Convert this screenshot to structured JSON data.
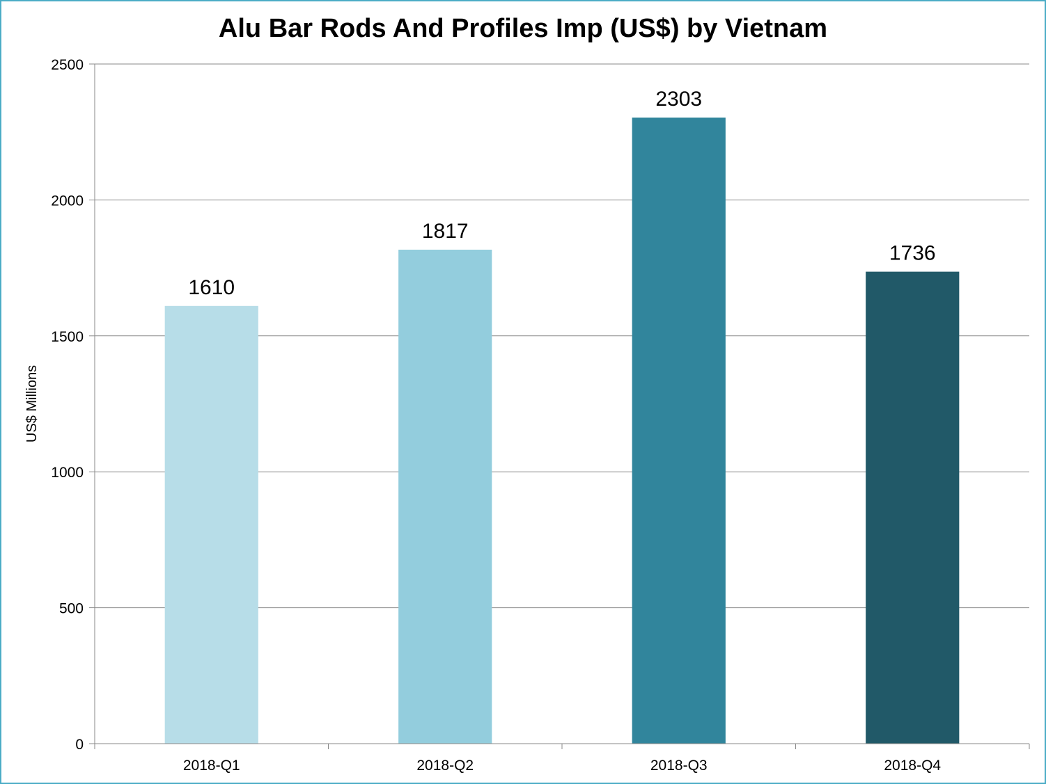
{
  "chart_data": {
    "type": "bar",
    "title": "Alu Bar Rods And Profiles Imp (US$) by Vietnam",
    "ylabel": "US$ Millions",
    "xlabel": "",
    "categories": [
      "2018-Q1",
      "2018-Q2",
      "2018-Q3",
      "2018-Q4"
    ],
    "values": [
      1610,
      1817,
      2303,
      1736
    ],
    "data_labels": [
      "1610",
      "1817",
      "2303",
      "1736"
    ],
    "ylim": [
      0,
      2500
    ],
    "yticks": [
      0,
      500,
      1000,
      1500,
      2000,
      2500
    ],
    "ytick_labels": [
      "0",
      "500",
      "1000",
      "1500",
      "2000",
      "2500"
    ],
    "grid": true,
    "legend": "none",
    "colors": {
      "bars": [
        "#b7dde8",
        "#93cddd",
        "#31859c",
        "#215968"
      ],
      "gridline": "#898989",
      "axis": "#898989",
      "border": "#4bacc6"
    }
  }
}
